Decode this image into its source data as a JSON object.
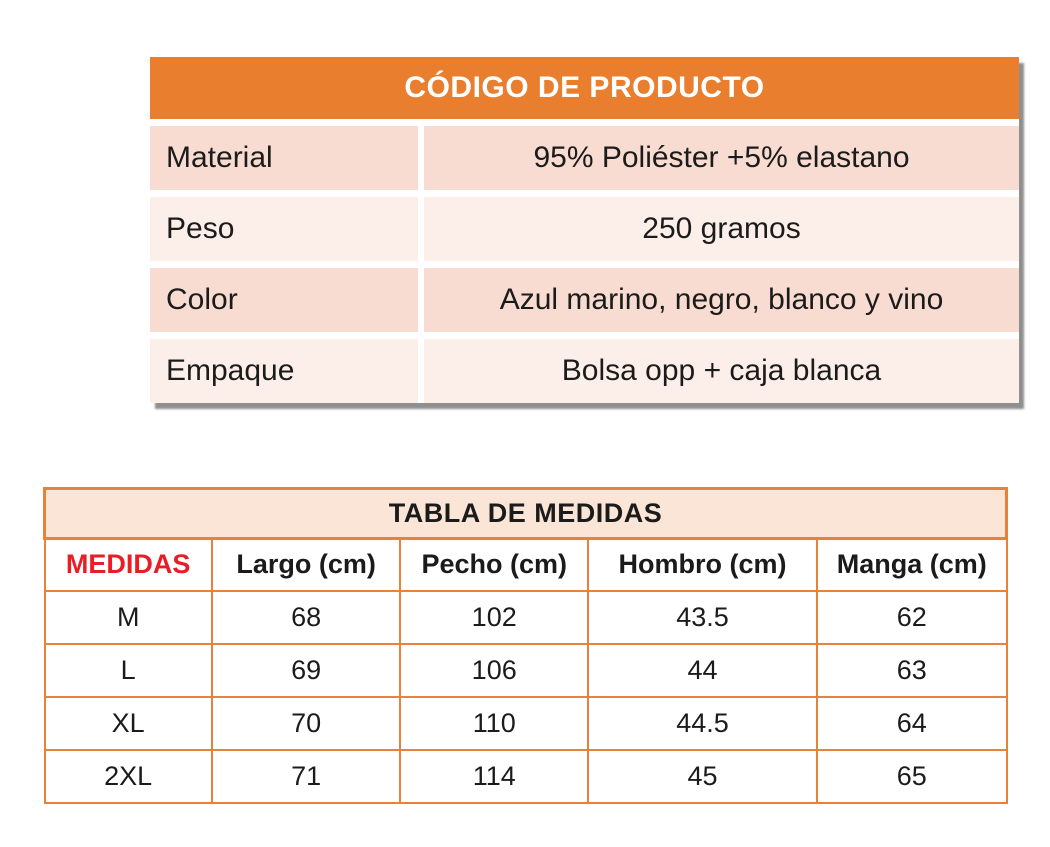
{
  "page": {
    "background": "#ffffff"
  },
  "colors": {
    "header_orange": "#E87E2E",
    "border_orange": "#E8813A",
    "row_pink_dark": "#F8DCD1",
    "row_pink_light": "#FCEFE9",
    "title_peach": "#FBE5D6",
    "medidas_red": "#E91D25",
    "shadow_gray": "#8f8f8f",
    "text_black": "#1b1b1b",
    "header_text_white": "#ffffff"
  },
  "product_table": {
    "title": "CÓDIGO DE PRODUCTO",
    "rows": [
      {
        "label": "Material",
        "value": "95% Poliéster +5% elastano"
      },
      {
        "label": "Peso",
        "value": "250 gramos"
      },
      {
        "label": "Color",
        "value": "Azul marino, negro, blanco y vino"
      },
      {
        "label": "Empaque",
        "value": "Bolsa opp + caja blanca"
      }
    ]
  },
  "size_table": {
    "title": "TABLA DE MEDIDAS",
    "columns": [
      "MEDIDAS",
      "Largo (cm)",
      "Pecho (cm)",
      "Hombro (cm)",
      "Manga (cm)"
    ],
    "rows": [
      {
        "size": "M",
        "values": [
          "68",
          "102",
          "43.5",
          "62"
        ]
      },
      {
        "size": "L",
        "values": [
          "69",
          "106",
          "44",
          "63"
        ]
      },
      {
        "size": "XL",
        "values": [
          "70",
          "110",
          "44.5",
          "64"
        ]
      },
      {
        "size": "2XL",
        "values": [
          "71",
          "114",
          "45",
          "65"
        ]
      }
    ]
  }
}
